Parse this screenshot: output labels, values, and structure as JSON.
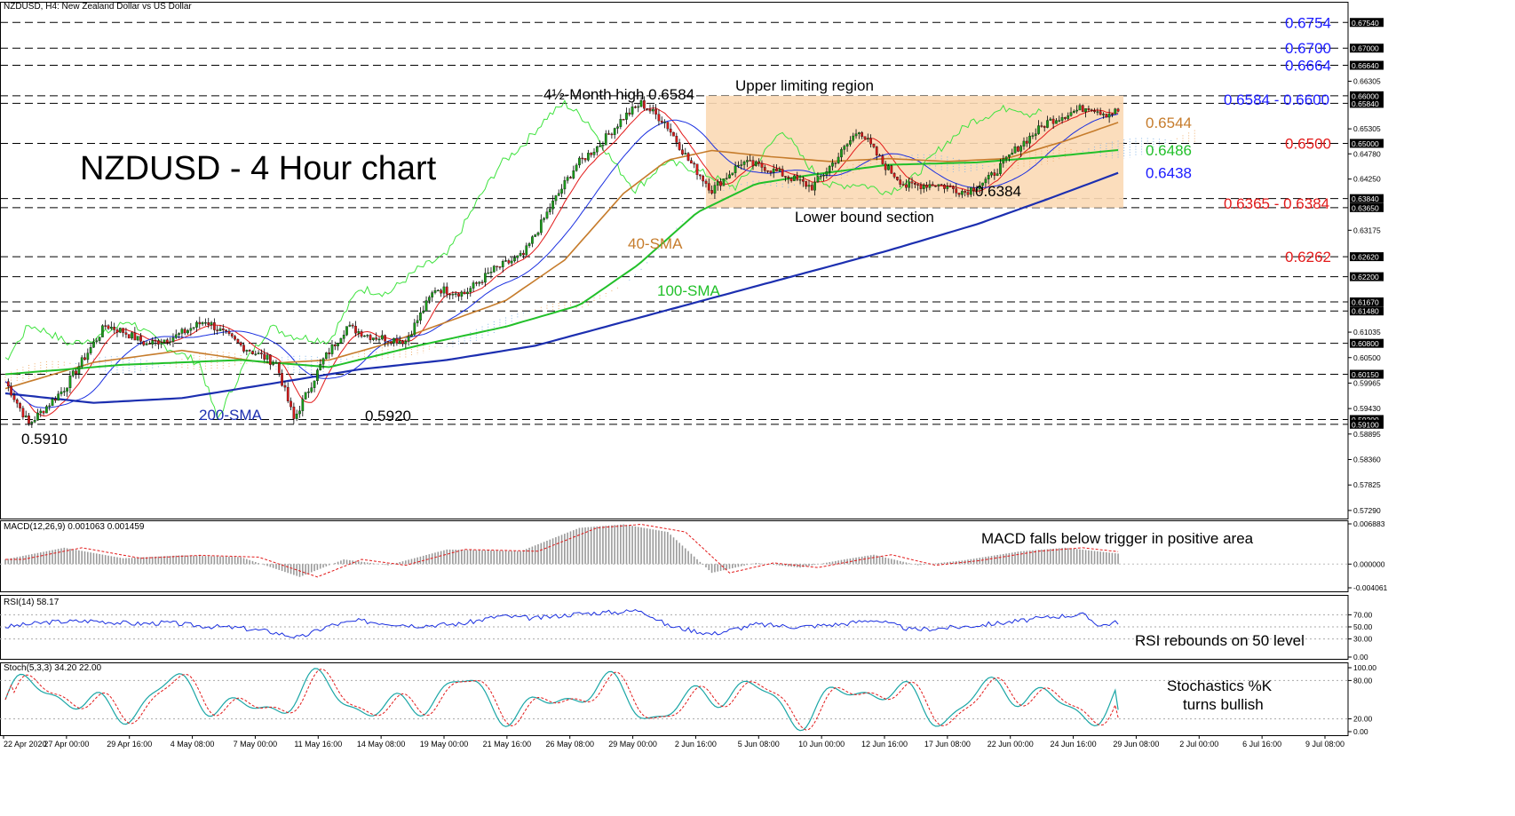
{
  "header": {
    "symbol": "NZDUSD, H4:  New Zealand Dollar vs US Dollar",
    "macd_label": "MACD(12,26,9) 0.001063 0.001459",
    "rsi_label": "RSI(14) 58.17",
    "stoch_label": "Stoch(5,3,3) 34.20 22.00"
  },
  "colors": {
    "candle_up": "#1a9a1a",
    "candle_down": "#d41a1a",
    "sma40": "#c67c2c",
    "sma100": "#22c02a",
    "sma200": "#1c2fb0",
    "tenkan": "#e21a1a",
    "kijun": "#1a2fe0",
    "chikou": "#3fe33f",
    "cloud_orange": "#f0b070",
    "cloud_blue": "#86b6e6",
    "region_fill": "#fbd9b5"
  },
  "annotations": {
    "chart_title": "NZDUSD - 4 Hour chart",
    "month_high": "4½-Month high 0.6584",
    "upper_region": "Upper limiting region",
    "lower_section": "Lower bound section",
    "sma40": "40-SMA",
    "sma100": "100-SMA",
    "sma200": "200-SMA",
    "low_0910": "0.5910",
    "low_0920": "0.5920",
    "low_6384": "0.6384",
    "macd_note": "MACD falls below trigger in positive area",
    "rsi_note": "RSI rebounds on 50 level",
    "stoch_note_1": "Stochastics %K",
    "stoch_note_2": "turns bullish"
  },
  "levels_right": [
    {
      "text": "0.6754",
      "color": "#1a1aff",
      "price": 0.6754
    },
    {
      "text": "0.6700",
      "color": "#1a1aff",
      "price": 0.67
    },
    {
      "text": "0.6664",
      "color": "#1a1aff",
      "price": 0.6664
    },
    {
      "text": "0.6584 - 0.6600",
      "color": "#1a1aff",
      "price": 0.6592
    },
    {
      "text": "0.6544",
      "color": "#c67c2c",
      "price": 0.6544
    },
    {
      "text": "0.6500",
      "color": "#e21a1a",
      "price": 0.65
    },
    {
      "text": "0.6486",
      "color": "#22c02a",
      "price": 0.6486
    },
    {
      "text": "0.6438",
      "color": "#1a1aff",
      "price": 0.6438
    },
    {
      "text": "0.6365 - 0.6384",
      "color": "#e21a1a",
      "price": 0.6374
    },
    {
      "text": "0.6262",
      "color": "#e21a1a",
      "price": 0.6262
    }
  ],
  "chart_data": {
    "type": "line",
    "title": "NZDUSD - 4 Hour chart",
    "symbol": "NZDUSD, H4",
    "ylim": [
      0.5712,
      0.6775
    ],
    "y_ticks": [
      "0.67540",
      "0.67000",
      "0.66640",
      "0.66305",
      "0.66000",
      "0.65840",
      "0.65305",
      "0.65000",
      "0.64780",
      "0.64250",
      "0.63840",
      "0.63650",
      "0.63175",
      "0.62620",
      "0.62200",
      "0.61670",
      "0.61480",
      "0.61035",
      "0.60800",
      "0.60500",
      "0.60150",
      "0.59965",
      "0.59430",
      "0.59200",
      "0.59100",
      "0.58895",
      "0.58360",
      "0.57825",
      "0.57290"
    ],
    "dashed_levels": [
      0.6754,
      0.67,
      0.6664,
      0.66,
      0.6584,
      0.65,
      0.6384,
      0.6365,
      0.6262,
      0.622,
      0.6167,
      0.6148,
      0.608,
      0.6015,
      0.592,
      0.591
    ],
    "x_labels": [
      "22 Apr 2020",
      "27 Apr 00:00",
      "29 Apr 16:00",
      "4 May 08:00",
      "7 May 00:00",
      "11 May 16:00",
      "14 May 08:00",
      "19 May 00:00",
      "21 May 16:00",
      "26 May 08:00",
      "29 May 00:00",
      "2 Jun 16:00",
      "5 Jun 08:00",
      "10 Jun 00:00",
      "12 Jun 16:00",
      "17 Jun 08:00",
      "22 Jun 00:00",
      "24 Jun 16:00",
      "29 Jun 08:00",
      "2 Jul 00:00",
      "6 Jul 16:00",
      "9 Jul 08:00"
    ],
    "price_path": [
      [
        0,
        0.6
      ],
      [
        8,
        0.591
      ],
      [
        20,
        0.5985
      ],
      [
        34,
        0.6118
      ],
      [
        40,
        0.6105
      ],
      [
        48,
        0.6078
      ],
      [
        58,
        0.6095
      ],
      [
        68,
        0.6128
      ],
      [
        80,
        0.6075
      ],
      [
        92,
        0.6038
      ],
      [
        98,
        0.592
      ],
      [
        108,
        0.6045
      ],
      [
        116,
        0.6115
      ],
      [
        124,
        0.6095
      ],
      [
        136,
        0.6085
      ],
      [
        146,
        0.6195
      ],
      [
        156,
        0.6185
      ],
      [
        166,
        0.6235
      ],
      [
        176,
        0.6265
      ],
      [
        186,
        0.6375
      ],
      [
        194,
        0.6455
      ],
      [
        202,
        0.6498
      ],
      [
        210,
        0.6555
      ],
      [
        216,
        0.6584
      ],
      [
        224,
        0.6545
      ],
      [
        232,
        0.6465
      ],
      [
        240,
        0.6402
      ],
      [
        250,
        0.646
      ],
      [
        258,
        0.645
      ],
      [
        266,
        0.643
      ],
      [
        274,
        0.6408
      ],
      [
        282,
        0.6465
      ],
      [
        290,
        0.653
      ],
      [
        298,
        0.6458
      ],
      [
        306,
        0.641
      ],
      [
        316,
        0.6415
      ],
      [
        326,
        0.6398
      ],
      [
        334,
        0.6425
      ],
      [
        344,
        0.6492
      ],
      [
        354,
        0.6545
      ],
      [
        362,
        0.6565
      ],
      [
        368,
        0.6578
      ],
      [
        374,
        0.6562
      ],
      [
        378,
        0.6568
      ]
    ],
    "sma40": [
      [
        0,
        0.5985
      ],
      [
        30,
        0.604
      ],
      [
        60,
        0.6065
      ],
      [
        90,
        0.6038
      ],
      [
        110,
        0.6045
      ],
      [
        130,
        0.608
      ],
      [
        150,
        0.6125
      ],
      [
        170,
        0.617
      ],
      [
        190,
        0.6255
      ],
      [
        210,
        0.6395
      ],
      [
        225,
        0.6465
      ],
      [
        240,
        0.6485
      ],
      [
        260,
        0.6472
      ],
      [
        280,
        0.6462
      ],
      [
        300,
        0.6468
      ],
      [
        320,
        0.6462
      ],
      [
        340,
        0.6468
      ],
      [
        360,
        0.6505
      ],
      [
        378,
        0.6544
      ]
    ],
    "sma100": [
      [
        0,
        0.6015
      ],
      [
        40,
        0.6035
      ],
      [
        80,
        0.6045
      ],
      [
        110,
        0.603
      ],
      [
        140,
        0.6075
      ],
      [
        170,
        0.6115
      ],
      [
        195,
        0.616
      ],
      [
        215,
        0.6245
      ],
      [
        235,
        0.6355
      ],
      [
        255,
        0.6415
      ],
      [
        275,
        0.6435
      ],
      [
        300,
        0.6455
      ],
      [
        330,
        0.646
      ],
      [
        355,
        0.6472
      ],
      [
        378,
        0.6486
      ]
    ],
    "sma200": [
      [
        0,
        0.5975
      ],
      [
        30,
        0.5955
      ],
      [
        60,
        0.5965
      ],
      [
        90,
        0.5995
      ],
      [
        120,
        0.6025
      ],
      [
        150,
        0.6045
      ],
      [
        180,
        0.6075
      ],
      [
        210,
        0.6125
      ],
      [
        240,
        0.6175
      ],
      [
        270,
        0.6225
      ],
      [
        300,
        0.6275
      ],
      [
        330,
        0.633
      ],
      [
        355,
        0.6385
      ],
      [
        378,
        0.6438
      ]
    ],
    "ylabel_sma": [
      "40-SMA",
      "100-SMA",
      "200-SMA"
    ],
    "macd_ylim": [
      -0.004061,
      0.006883
    ],
    "macd_ticks": [
      "0.006883",
      "0.000000",
      "-0.004061"
    ],
    "macd_hist": [
      [
        0,
        0.0008
      ],
      [
        20,
        0.0028
      ],
      [
        40,
        0.001
      ],
      [
        60,
        0.0015
      ],
      [
        80,
        0.0012
      ],
      [
        100,
        -0.0022
      ],
      [
        115,
        0.0008
      ],
      [
        130,
        -0.0002
      ],
      [
        150,
        0.0025
      ],
      [
        175,
        0.0022
      ],
      [
        195,
        0.0062
      ],
      [
        210,
        0.0068
      ],
      [
        225,
        0.0055
      ],
      [
        240,
        -0.0015
      ],
      [
        255,
        0.0002
      ],
      [
        270,
        -0.0006
      ],
      [
        285,
        0.0008
      ],
      [
        295,
        0.0016
      ],
      [
        310,
        -0.0002
      ],
      [
        325,
        0.0006
      ],
      [
        345,
        0.0022
      ],
      [
        360,
        0.0028
      ],
      [
        378,
        0.0018
      ]
    ],
    "rsi_ylim": [
      0,
      100
    ],
    "rsi_ticks": [
      "70.00",
      "50.00",
      "30.00",
      "0.00"
    ],
    "rsi_levels": [
      70,
      50,
      30
    ],
    "rsi_series": [
      [
        0,
        50
      ],
      [
        15,
        58
      ],
      [
        30,
        60
      ],
      [
        45,
        55
      ],
      [
        55,
        57
      ],
      [
        65,
        52
      ],
      [
        80,
        48
      ],
      [
        90,
        42
      ],
      [
        100,
        32
      ],
      [
        110,
        52
      ],
      [
        120,
        60
      ],
      [
        140,
        52
      ],
      [
        155,
        55
      ],
      [
        168,
        68
      ],
      [
        180,
        64
      ],
      [
        195,
        72
      ],
      [
        210,
        75
      ],
      [
        216,
        78
      ],
      [
        225,
        52
      ],
      [
        240,
        38
      ],
      [
        255,
        54
      ],
      [
        270,
        50
      ],
      [
        285,
        55
      ],
      [
        295,
        62
      ],
      [
        308,
        45
      ],
      [
        325,
        50
      ],
      [
        345,
        60
      ],
      [
        358,
        68
      ],
      [
        366,
        70
      ],
      [
        372,
        52
      ],
      [
        378,
        58.17
      ]
    ],
    "stoch_ylim": [
      0,
      100
    ],
    "stoch_ticks": [
      "100.00",
      "80.00",
      "20.00",
      "0.00"
    ],
    "stoch_levels": [
      80,
      20
    ],
    "stoch_k_end": 34.2,
    "stoch_d_end": 22.0
  }
}
